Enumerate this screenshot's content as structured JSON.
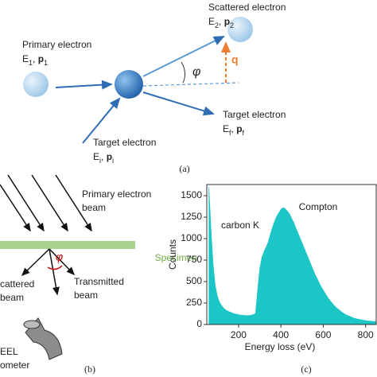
{
  "panel_a": {
    "caption": "(a)",
    "scattered": {
      "name": "Scattered electron",
      "e": "E",
      "e_sub": "2",
      "sep": ", ",
      "p": "p",
      "p_sub": "2"
    },
    "primary": {
      "name": "Primary electron",
      "e": "E",
      "e_sub": "1",
      "sep": ", ",
      "p": "p",
      "p_sub": "1"
    },
    "target_i": {
      "name": "Target electron",
      "e": "E",
      "e_sub": "i",
      "sep": ", ",
      "p": "p",
      "p_sub": "i"
    },
    "target_f": {
      "name": "Target electron",
      "e": "E",
      "e_sub": "f",
      "sep": ", ",
      "p": "p",
      "p_sub": "f"
    },
    "angle": "φ",
    "q": "q"
  },
  "panel_b": {
    "caption": "(b)",
    "beam": [
      "Primary electron",
      "beam"
    ],
    "specimen": "Specimen",
    "scattered": [
      "cattered",
      "beam"
    ],
    "transmitted": [
      "Transmitted",
      "beam"
    ],
    "spectrometer": [
      "EEL",
      "ometer"
    ],
    "angle": "φ"
  },
  "chart_data": {
    "type": "area",
    "caption": "(c)",
    "x_label": "Energy loss (eV)",
    "y_label": "Counts",
    "color": "#1cc6c6",
    "annotations": [
      "carbon K",
      "Compton"
    ],
    "xlim": [
      50,
      850
    ],
    "xticks": [
      200,
      400,
      600,
      800
    ],
    "ylim": [
      0,
      1630
    ],
    "yticks": [
      0,
      250,
      500,
      750,
      1000,
      1250,
      1500
    ],
    "x": [
      60,
      70,
      80,
      90,
      100,
      110,
      120,
      130,
      140,
      150,
      160,
      170,
      180,
      190,
      200,
      210,
      220,
      230,
      240,
      250,
      260,
      270,
      280,
      290,
      300,
      310,
      320,
      330,
      340,
      350,
      360,
      370,
      380,
      390,
      400,
      410,
      420,
      430,
      440,
      450,
      460,
      470,
      480,
      490,
      500,
      510,
      520,
      530,
      540,
      550,
      560,
      570,
      580,
      590,
      600,
      610,
      620,
      630,
      640,
      650,
      660,
      670,
      680,
      690,
      700,
      710,
      720,
      730,
      740,
      750,
      760,
      770,
      780,
      790,
      800,
      810,
      820,
      830,
      840,
      850
    ],
    "values": [
      1600,
      1100,
      700,
      450,
      330,
      260,
      220,
      190,
      170,
      155,
      145,
      135,
      125,
      120,
      115,
      110,
      108,
      105,
      105,
      105,
      110,
      115,
      130,
      400,
      650,
      780,
      850,
      900,
      960,
      1050,
      1130,
      1200,
      1260,
      1300,
      1340,
      1360,
      1350,
      1320,
      1290,
      1240,
      1190,
      1130,
      1070,
      1010,
      950,
      890,
      830,
      770,
      710,
      650,
      590,
      540,
      490,
      440,
      400,
      360,
      320,
      285,
      255,
      225,
      200,
      180,
      160,
      140,
      125,
      110,
      100,
      90,
      80,
      72,
      65,
      60,
      55,
      50,
      46,
      42,
      40,
      38,
      36,
      35
    ]
  }
}
